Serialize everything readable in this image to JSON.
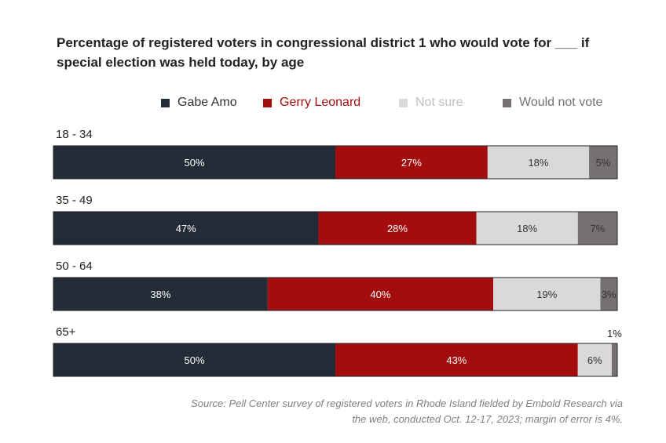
{
  "title": "Percentage of registered voters in congressional district 1 who would vote for ___ if special election was held today, by age",
  "source": "Source: Pell Center survey of registered voters in Rhode Island fielded by Embold Research via the web, conducted Oct. 12-17, 2023; margin of error is 4%.",
  "legend": [
    {
      "name": "Gabe Amo",
      "color": "#232b36",
      "text_color": "#333333"
    },
    {
      "name": "Gerry Leonard",
      "color": "#a30d0d",
      "text_color": "#a30d0d"
    },
    {
      "name": "Not sure",
      "color": "#d9d9d9",
      "text_color": "#bfbfbf"
    },
    {
      "name": "Would not vote",
      "color": "#767171",
      "text_color": "#767171"
    }
  ],
  "chart_data": {
    "type": "bar",
    "orientation": "horizontal",
    "stacked": true,
    "categories": [
      "18 - 34",
      "35 - 49",
      "50 - 64",
      "65+"
    ],
    "series": [
      {
        "name": "Gabe Amo",
        "values": [
          50,
          47,
          38,
          50
        ],
        "labels": [
          "50%",
          "47%",
          "38%",
          "50%"
        ],
        "color": "#232b36",
        "label_color": "#ffffff"
      },
      {
        "name": "Gerry Leonard",
        "values": [
          27,
          28,
          40,
          43
        ],
        "labels": [
          "27%",
          "28%",
          "40%",
          "43%"
        ],
        "color": "#a30d0d",
        "label_color": "#ffffff"
      },
      {
        "name": "Not sure",
        "values": [
          18,
          18,
          19,
          6
        ],
        "labels": [
          "18%",
          "18%",
          "19%",
          "6%"
        ],
        "color": "#d9d9d9",
        "label_color": "#333333"
      },
      {
        "name": "Would not vote",
        "values": [
          5,
          7,
          3,
          1
        ],
        "labels": [
          "5%",
          "7%",
          "3%",
          "1%"
        ],
        "color": "#767171",
        "label_color": "#333333"
      }
    ],
    "xlim": [
      0,
      100
    ],
    "legend_position": "top",
    "grid": false
  }
}
